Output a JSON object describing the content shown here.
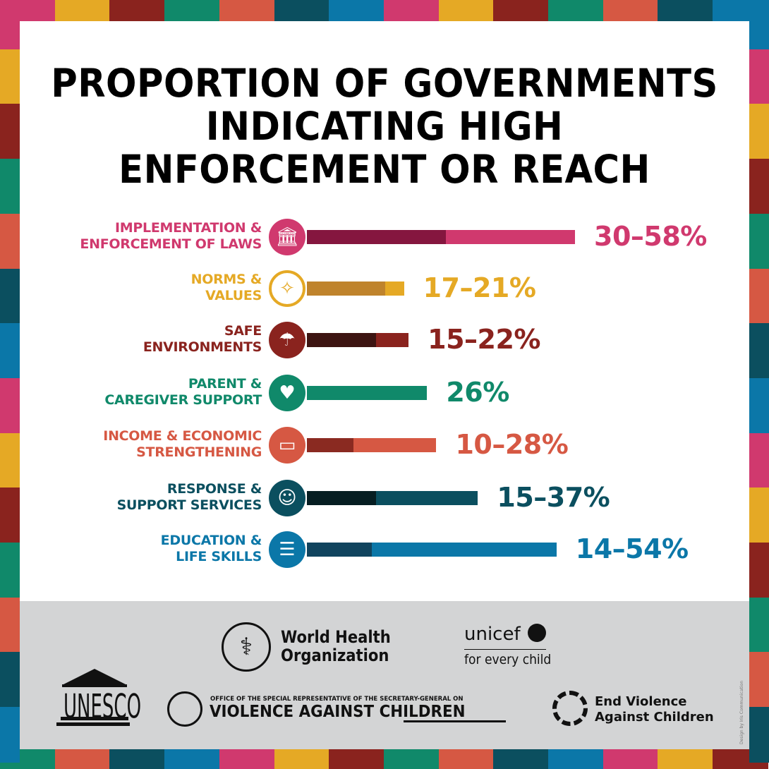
{
  "border_colors": [
    "#d0396e",
    "#e5a925",
    "#8a231e",
    "#10896a",
    "#d65843",
    "#0b4f5f",
    "#0b77a8"
  ],
  "chart_data": {
    "type": "bar",
    "title": "PROPORTION OF GOVERNMENTS INDICATING HIGH ENFORCEMENT OR REACH",
    "title_lines": [
      "PROPORTION OF GOVERNMENTS",
      "INDICATING HIGH",
      "ENFORCEMENT OR REACH"
    ],
    "unit": "%",
    "grid": false,
    "legend": "none",
    "categories": [
      {
        "label_lines": [
          "IMPLEMENTATION &",
          "ENFORCEMENT OF LAWS"
        ],
        "icon": "courthouse-icon",
        "low": 30,
        "high": 58,
        "value_label": "30–58%",
        "color": "#d0396e",
        "dark": "#85163f"
      },
      {
        "label_lines": [
          "NORMS &",
          "VALUES"
        ],
        "icon": "compass-icon",
        "low": 17,
        "high": 21,
        "value_label": "17–21%",
        "color": "#e5a925",
        "dark": "#bf832c"
      },
      {
        "label_lines": [
          "SAFE",
          "ENVIRONMENTS"
        ],
        "icon": "umbrella-people-icon",
        "low": 15,
        "high": 22,
        "value_label": "15–22%",
        "color": "#8a231e",
        "dark": "#3d1412"
      },
      {
        "label_lines": [
          "PARENT &",
          "CAREGIVER SUPPORT"
        ],
        "icon": "family-heart-icon",
        "low": 26,
        "high": 26,
        "value_label": "26%",
        "color": "#10896a",
        "dark": "#10896a"
      },
      {
        "label_lines": [
          "INCOME & ECONOMIC",
          "STRENGTHENING"
        ],
        "icon": "wallet-icon",
        "low": 10,
        "high": 28,
        "value_label": "10–28%",
        "color": "#d65843",
        "dark": "#8a2a21"
      },
      {
        "label_lines": [
          "RESPONSE &",
          "SUPPORT SERVICES"
        ],
        "icon": "support-people-icon",
        "low": 15,
        "high": 37,
        "value_label": "15–37%",
        "color": "#0b4f5f",
        "dark": "#061e22"
      },
      {
        "label_lines": [
          "EDUCATION &",
          "LIFE SKILLS"
        ],
        "icon": "speech-group-icon",
        "low": 14,
        "high": 54,
        "value_label": "14–54%",
        "color": "#0b77a8",
        "dark": "#11445e"
      }
    ]
  },
  "footer": {
    "who": [
      "World Health",
      "Organization"
    ],
    "unicef": [
      "unicef",
      "for every child"
    ],
    "unesco": "UNESCO",
    "srsg_small": "OFFICE OF THE SPECIAL REPRESENTATIVE OF THE SECRETARY-GENERAL ON",
    "srsg_big": "VIOLENCE AGAINST CHILDREN",
    "evac": [
      "End Violence",
      "Against Children"
    ],
    "credit": "Design by Iris Communication"
  }
}
